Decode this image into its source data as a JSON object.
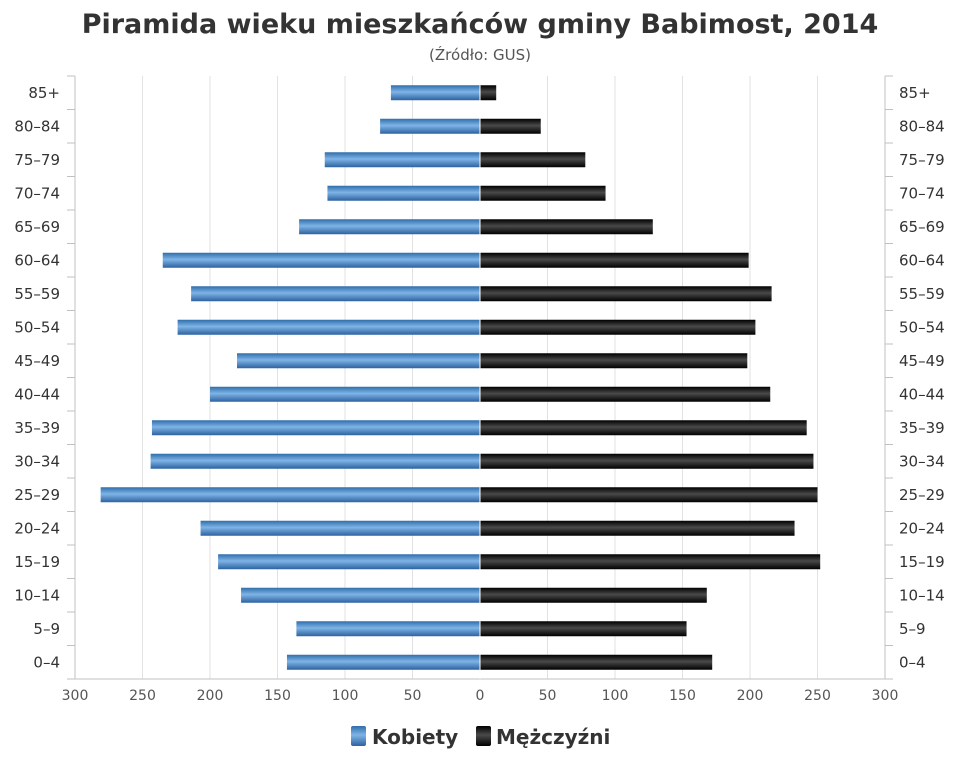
{
  "chart_data": {
    "type": "bar",
    "orientation": "horizontal",
    "title": "Piramida wieku mieszkańców gminy Babimost, 2014",
    "subtitle": "(Źródło: GUS)",
    "categories": [
      "85+",
      "80–84",
      "75–79",
      "70–74",
      "65–69",
      "60–64",
      "55–59",
      "50–54",
      "45–49",
      "40–44",
      "35–39",
      "30–34",
      "25–29",
      "20–24",
      "15–19",
      "10–14",
      "5–9",
      "0–4"
    ],
    "series": [
      {
        "name": "Kobiety",
        "color": "#4f8fcf",
        "values": [
          66,
          74,
          115,
          113,
          134,
          235,
          214,
          224,
          180,
          200,
          243,
          244,
          281,
          207,
          194,
          177,
          136,
          143
        ]
      },
      {
        "name": "Mężczyźni",
        "color": "#1a1a1a",
        "values": [
          12,
          45,
          78,
          93,
          128,
          199,
          216,
          204,
          198,
          215,
          242,
          247,
          250,
          233,
          252,
          168,
          153,
          172
        ]
      }
    ],
    "xlim": [
      -300,
      300
    ],
    "x_ticks": [
      "300",
      "250",
      "200",
      "150",
      "100",
      "50",
      "0",
      "50",
      "100",
      "150",
      "200",
      "250",
      "300"
    ],
    "grid": true,
    "legend_position": "bottom"
  }
}
